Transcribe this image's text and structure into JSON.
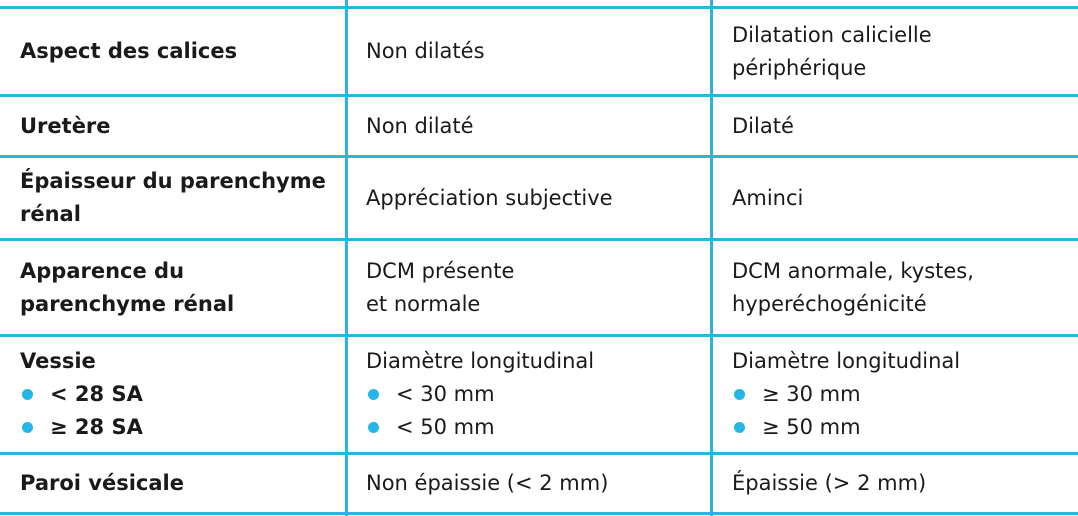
{
  "table": {
    "rows": [
      {
        "label": [
          "Aspect des calices"
        ],
        "col2": [
          "Non dilatés"
        ],
        "col3": [
          "Dilatation calicielle",
          "périphérique"
        ]
      },
      {
        "label": [
          "Uretère"
        ],
        "col2": [
          "Non dilaté"
        ],
        "col3": [
          "Dilaté"
        ]
      },
      {
        "label": [
          "Épaisseur du parenchyme",
          "rénal"
        ],
        "col2": [
          "Appréciation subjective"
        ],
        "col3": [
          "Aminci"
        ]
      },
      {
        "label": [
          "Apparence du",
          "parenchyme rénal"
        ],
        "col2": [
          "DCM présente",
          "et normale"
        ],
        "col3": [
          "DCM anormale, kystes,",
          "hyperéchogénicité"
        ]
      },
      {
        "label": [
          "Vessie"
        ],
        "label_bullets": [
          "< 28 SA",
          "≥ 28 SA"
        ],
        "col2": [
          "Diamètre longitudinal"
        ],
        "col2_bullets": [
          "< 30 mm",
          "< 50 mm"
        ],
        "col3": [
          "Diamètre longitudinal"
        ],
        "col3_bullets": [
          "≥ 30 mm",
          "≥ 50 mm"
        ]
      },
      {
        "label": [
          "Paroi vésicale"
        ],
        "col2": [
          "Non épaissie (< 2 mm)"
        ],
        "col3": [
          "Épaissie (> 2 mm)"
        ]
      }
    ]
  },
  "colors": {
    "rule": "#26b6e6",
    "bullet": "#26b6e6",
    "text": "#1a1a1a"
  }
}
